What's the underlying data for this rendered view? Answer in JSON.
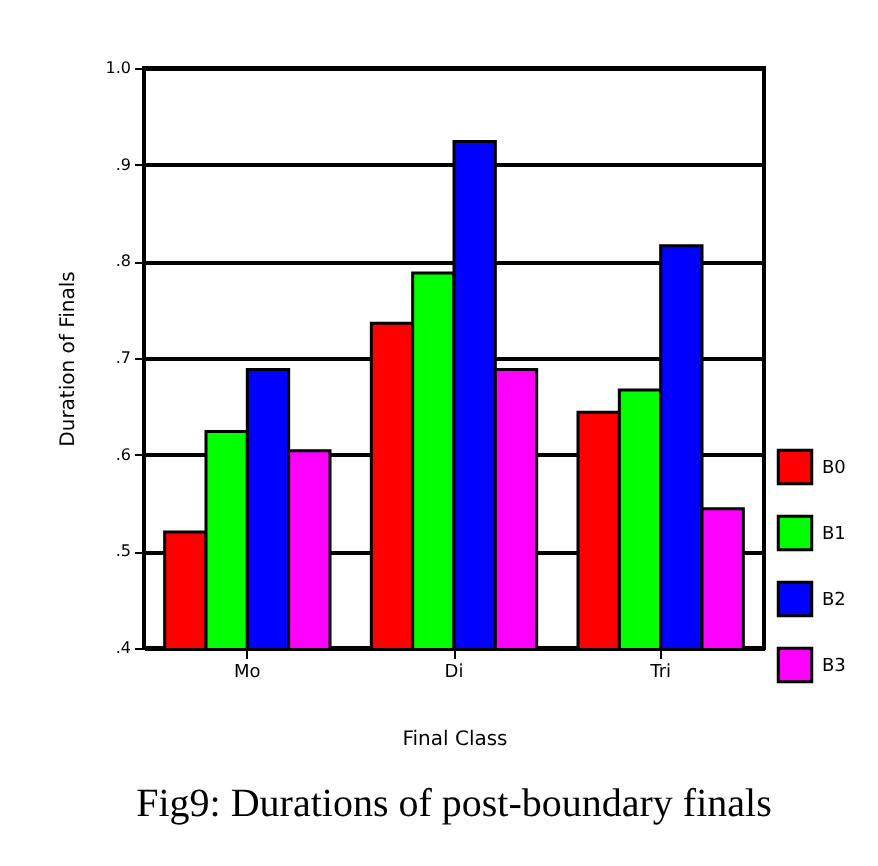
{
  "chart_data": {
    "type": "bar",
    "xlabel": "Final Class",
    "ylabel": "Duration of Finals",
    "categories": [
      "Mo",
      "Di",
      "Tri"
    ],
    "series": [
      {
        "name": "B0",
        "color": "#ff0000",
        "values": [
          0.52,
          0.736,
          0.644
        ]
      },
      {
        "name": "B1",
        "color": "#00ff00",
        "values": [
          0.624,
          0.788,
          0.667
        ]
      },
      {
        "name": "B2",
        "color": "#0000ff",
        "values": [
          0.688,
          0.924,
          0.816
        ]
      },
      {
        "name": "B3",
        "color": "#ff00ff",
        "values": [
          0.604,
          0.688,
          0.544
        ]
      }
    ],
    "ylim": [
      0.4,
      1.0
    ],
    "yticks": [
      {
        "value": 0.4,
        "label": ".4"
      },
      {
        "value": 0.5,
        "label": ".5"
      },
      {
        "value": 0.6,
        "label": ".6"
      },
      {
        "value": 0.7,
        "label": ".7"
      },
      {
        "value": 0.8,
        "label": ".8"
      },
      {
        "value": 0.9,
        "label": ".9"
      },
      {
        "value": 1.0,
        "label": "1.0"
      }
    ],
    "grid": "y",
    "legend": "bottom right",
    "annotations": [
      "Fig9: Durations of post-boundary finals"
    ]
  }
}
